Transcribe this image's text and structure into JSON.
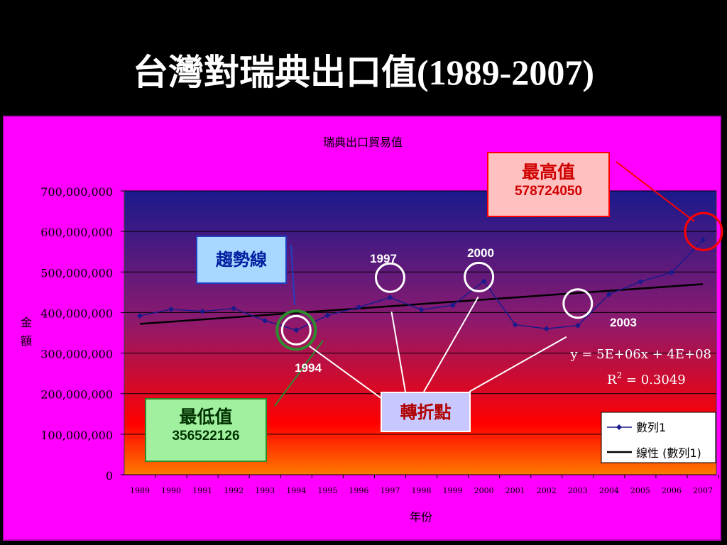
{
  "slide": {
    "title": "台灣對瑞典出口值(1989-2007)"
  },
  "chart_data": {
    "type": "line",
    "title": "瑞典出口貿易值",
    "xlabel": "年份",
    "ylabel": "金額",
    "ylim": [
      0,
      700000000
    ],
    "yticks": [
      "0",
      "100,000,000",
      "200,000,000",
      "300,000,000",
      "400,000,000",
      "500,000,000",
      "600,000,000",
      "700,000,000"
    ],
    "x": [
      "1989",
      "1990",
      "1991",
      "1992",
      "1993",
      "1994",
      "1995",
      "1996",
      "1997",
      "1998",
      "1999",
      "2000",
      "2001",
      "2002",
      "2003",
      "2004",
      "2005",
      "2006",
      "2007"
    ],
    "series": [
      {
        "name": "數列1",
        "values": [
          392000000,
          408000000,
          403000000,
          410000000,
          380000000,
          356522126,
          393000000,
          413000000,
          437000000,
          407000000,
          418000000,
          477000000,
          370000000,
          360000000,
          368000000,
          445000000,
          476000000,
          499000000,
          578724050
        ],
        "color": "#1a1a8c"
      },
      {
        "name": "線性 (數列1)",
        "trend": [
          372000000,
          470000000
        ],
        "color": "#000000"
      }
    ],
    "equation": "y = 5E+06x + 4E+08",
    "r2_prefix": "R",
    "r2_sup": "2",
    "r2_value": " = 0.3049",
    "legend_position": "bottom-right",
    "grid": true,
    "background_gradient": [
      "#1a1a8c",
      "#8a1a70",
      "#ff0000",
      "#ff7a00"
    ]
  },
  "annotations": {
    "max_label": "最高值",
    "max_value": "578724050",
    "min_label": "最低值",
    "min_value": "356522126",
    "trend_label": "趨勢線",
    "turning_label": "轉折點",
    "year_labels": [
      {
        "text": "1994",
        "year": "1994"
      },
      {
        "text": "1997",
        "year": "1997"
      },
      {
        "text": "2000",
        "year": "2000"
      },
      {
        "text": "2003",
        "year": "2003"
      }
    ],
    "max_circle_color": "#ff0000",
    "min_circle_color": "#2e8b2e",
    "turning_circle_color": "#ffffff"
  }
}
